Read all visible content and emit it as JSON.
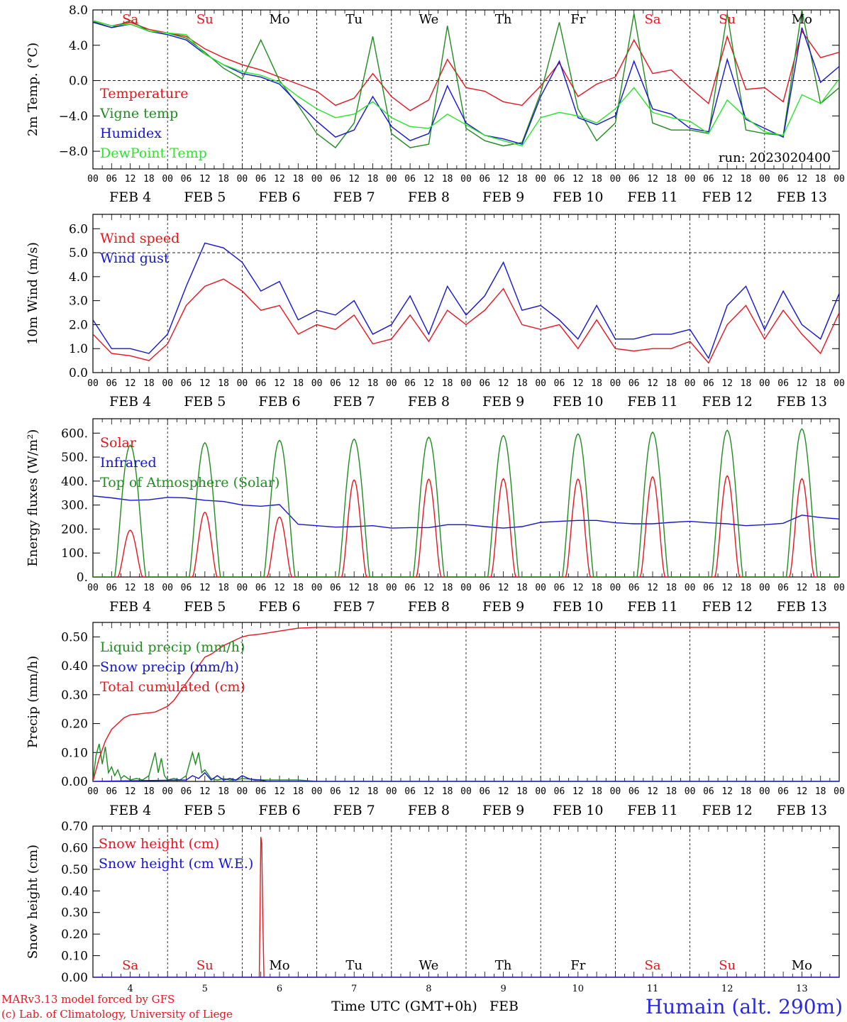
{
  "colors": {
    "red": "#e8141e",
    "green": "#1e8c1e",
    "blue": "#1414d2",
    "lightgreen": "#28e628",
    "black": "#000000"
  },
  "timeline": {
    "day_starts": [
      "FEB 4",
      "FEB 5",
      "FEB 6",
      "FEB 7",
      "FEB 8",
      "FEB 9",
      "FEB 10",
      "FEB 11",
      "FEB 12",
      "FEB 13"
    ],
    "hour_ticks": [
      "00",
      "06",
      "12",
      "18"
    ],
    "final_tick": "00",
    "weekdays": [
      {
        "label": "Sa",
        "weekend": true
      },
      {
        "label": "Su",
        "weekend": true
      },
      {
        "label": "Mo",
        "weekend": false
      },
      {
        "label": "Tu",
        "weekend": false
      },
      {
        "label": "We",
        "weekend": false
      },
      {
        "label": "Th",
        "weekend": false
      },
      {
        "label": "Fr",
        "weekend": false
      },
      {
        "label": "Sa",
        "weekend": true
      },
      {
        "label": "Su",
        "weekend": true
      },
      {
        "label": "Mo",
        "weekend": false
      }
    ],
    "bottom_day_numbers": [
      "4",
      "5",
      "6",
      "7",
      "8",
      "9",
      "10",
      "11",
      "12",
      "13"
    ]
  },
  "footer": {
    "credit1": "MARv3.13 model forced by GFS",
    "credit2": "(c) Lab. of Climatology, University of Liege",
    "xlabel": "Time UTC (GMT+0h)",
    "month": "FEB",
    "station": "Humain (alt. 290m)"
  },
  "chart_data": [
    {
      "type": "line",
      "ylabel": "2m Temp. (°C)",
      "ylim": [
        -10,
        8
      ],
      "yticks": [
        8,
        4,
        0,
        -4,
        -8
      ],
      "ytick_labels": [
        "8.0",
        "4.0",
        "0.0",
        "−4.0",
        "−8.0"
      ],
      "annotation": "run: 2023020400",
      "x_unit": "hours since FEB 4 00 UTC",
      "series": [
        {
          "name": "Temperature",
          "color": "red",
          "x": [
            0,
            6,
            12,
            18,
            24,
            30,
            36,
            42,
            48,
            54,
            60,
            66,
            72,
            78,
            84,
            90,
            96,
            102,
            108,
            114,
            120,
            126,
            132,
            138,
            144,
            150,
            156,
            162,
            168,
            174,
            180,
            186,
            192,
            198,
            204,
            210,
            216,
            222,
            228,
            234,
            240
          ],
          "values": [
            6.8,
            6.2,
            6.6,
            5.8,
            5.4,
            5.0,
            3.6,
            2.6,
            1.8,
            1.2,
            0.4,
            -0.4,
            -1.2,
            -2.8,
            -2.0,
            0.8,
            -1.8,
            -3.4,
            -2.2,
            2.4,
            -0.8,
            -1.2,
            -2.4,
            -2.8,
            -0.6,
            2.0,
            -1.8,
            -0.4,
            0.4,
            4.6,
            0.8,
            1.2,
            -0.8,
            -2.6,
            5.0,
            -1.0,
            -0.8,
            -2.4,
            5.6,
            2.6,
            3.2
          ]
        },
        {
          "name": "Vigne temp",
          "color": "green",
          "x": [
            0,
            6,
            12,
            18,
            24,
            30,
            36,
            42,
            48,
            54,
            60,
            66,
            72,
            78,
            84,
            90,
            96,
            102,
            108,
            114,
            120,
            126,
            132,
            138,
            144,
            150,
            156,
            162,
            168,
            174,
            180,
            186,
            192,
            198,
            204,
            210,
            216,
            222,
            228,
            234,
            240
          ],
          "values": [
            6.7,
            6.0,
            6.8,
            5.6,
            5.4,
            4.8,
            3.2,
            1.4,
            0.2,
            4.6,
            0.0,
            -2.8,
            -6.0,
            -7.6,
            -4.8,
            5.0,
            -6.0,
            -7.6,
            -7.2,
            6.2,
            -5.4,
            -6.8,
            -7.4,
            -7.0,
            -1.4,
            6.6,
            -3.2,
            -6.8,
            -4.8,
            7.6,
            -4.8,
            -5.6,
            -5.6,
            -6.0,
            7.6,
            -5.6,
            -6.0,
            -6.2,
            8.0,
            -2.6,
            -0.8
          ]
        },
        {
          "name": "Humidex",
          "color": "blue",
          "x": [
            0,
            6,
            12,
            18,
            24,
            30,
            36,
            42,
            48,
            54,
            60,
            66,
            72,
            78,
            84,
            90,
            96,
            102,
            108,
            114,
            120,
            126,
            132,
            138,
            144,
            150,
            156,
            162,
            168,
            174,
            180,
            186,
            192,
            198,
            204,
            210,
            216,
            222,
            228,
            234,
            240
          ],
          "values": [
            6.6,
            6.0,
            6.4,
            5.6,
            5.2,
            4.6,
            3.0,
            1.8,
            0.8,
            0.4,
            -0.4,
            -2.6,
            -4.6,
            -6.4,
            -5.6,
            -1.8,
            -5.2,
            -6.8,
            -6.0,
            -0.6,
            -4.8,
            -6.2,
            -6.6,
            -7.2,
            -1.8,
            2.2,
            -4.2,
            -5.0,
            -4.0,
            2.2,
            -3.2,
            -3.8,
            -5.4,
            -5.8,
            2.4,
            -4.4,
            -5.4,
            -6.4,
            6.0,
            -0.2,
            1.6
          ]
        },
        {
          "name": "DewPoint Temp",
          "color": "lightgreen",
          "x": [
            0,
            6,
            12,
            18,
            24,
            30,
            36,
            42,
            48,
            54,
            60,
            66,
            72,
            78,
            84,
            90,
            96,
            102,
            108,
            114,
            120,
            126,
            132,
            138,
            144,
            150,
            156,
            162,
            168,
            174,
            180,
            186,
            192,
            198,
            204,
            210,
            216,
            222,
            228,
            234,
            240
          ],
          "values": [
            6.8,
            6.2,
            6.4,
            5.6,
            5.4,
            5.2,
            3.0,
            1.8,
            1.0,
            0.6,
            -0.2,
            -1.8,
            -3.2,
            -4.2,
            -3.8,
            -2.4,
            -4.2,
            -5.2,
            -5.4,
            -3.8,
            -5.0,
            -6.2,
            -6.8,
            -7.4,
            -4.2,
            -3.6,
            -4.0,
            -4.8,
            -3.2,
            -0.8,
            -3.6,
            -4.2,
            -4.6,
            -6.0,
            -2.2,
            -4.2,
            -5.8,
            -6.2,
            -1.6,
            -2.6,
            0.2
          ]
        }
      ]
    },
    {
      "type": "line",
      "ylabel": "10m Wind (m/s)",
      "ylim": [
        0,
        6.6
      ],
      "yticks": [
        0,
        1,
        2,
        3,
        4,
        5,
        6
      ],
      "ytick_labels": [
        "0.0",
        "1.0",
        "2.0",
        "3.0",
        "4.0",
        "5.0",
        "6.0"
      ],
      "x_unit": "hours since FEB 4 00 UTC",
      "series": [
        {
          "name": "Wind speed",
          "color": "red",
          "x": [
            0,
            6,
            12,
            18,
            24,
            30,
            36,
            42,
            48,
            54,
            60,
            66,
            72,
            78,
            84,
            90,
            96,
            102,
            108,
            114,
            120,
            126,
            132,
            138,
            144,
            150,
            156,
            162,
            168,
            174,
            180,
            186,
            192,
            198,
            204,
            210,
            216,
            222,
            228,
            234,
            240
          ],
          "values": [
            1.6,
            0.8,
            0.7,
            0.5,
            1.2,
            2.8,
            3.6,
            3.9,
            3.4,
            2.6,
            2.8,
            1.6,
            2.0,
            1.8,
            2.4,
            1.2,
            1.4,
            2.4,
            1.3,
            2.6,
            2.0,
            2.6,
            3.5,
            2.0,
            1.8,
            2.0,
            1.0,
            2.2,
            1.0,
            0.9,
            1.0,
            1.0,
            1.3,
            0.4,
            2.0,
            2.8,
            1.4,
            2.6,
            1.6,
            0.8,
            2.5
          ]
        },
        {
          "name": "Wind gust",
          "color": "blue",
          "x": [
            0,
            6,
            12,
            18,
            24,
            30,
            36,
            42,
            48,
            54,
            60,
            66,
            72,
            78,
            84,
            90,
            96,
            102,
            108,
            114,
            120,
            126,
            132,
            138,
            144,
            150,
            156,
            162,
            168,
            174,
            180,
            186,
            192,
            198,
            204,
            210,
            216,
            222,
            228,
            234,
            240
          ],
          "values": [
            2.2,
            1.0,
            1.0,
            0.8,
            1.6,
            3.6,
            5.4,
            5.2,
            4.6,
            3.4,
            3.8,
            2.2,
            2.6,
            2.4,
            3.0,
            1.6,
            2.0,
            3.2,
            1.6,
            3.6,
            2.4,
            3.2,
            4.6,
            2.6,
            2.8,
            2.2,
            1.4,
            2.8,
            1.4,
            1.4,
            1.6,
            1.6,
            1.8,
            0.6,
            2.8,
            3.6,
            1.8,
            3.4,
            2.0,
            1.4,
            3.3
          ]
        }
      ]
    },
    {
      "type": "line",
      "ylabel": "Energy fluxes (W/m²)",
      "ylim": [
        0,
        660
      ],
      "yticks": [
        0,
        100,
        200,
        300,
        400,
        500,
        600
      ],
      "ytick_labels": [
        "0.",
        "100.",
        "200.",
        "300.",
        "400.",
        "500.",
        "600."
      ],
      "x_unit": "hours since FEB 4 00 UTC",
      "series": [
        {
          "name": "Solar",
          "color": "red",
          "diurnal_peaks": [
            195,
            270,
            250,
            405,
            408,
            410,
            408,
            418,
            422,
            410
          ]
        },
        {
          "name": "Infrared",
          "color": "blue",
          "x": [
            0,
            6,
            12,
            18,
            24,
            30,
            36,
            42,
            48,
            54,
            60,
            66,
            72,
            78,
            84,
            90,
            96,
            102,
            108,
            114,
            120,
            126,
            132,
            138,
            144,
            150,
            156,
            162,
            168,
            174,
            180,
            186,
            192,
            198,
            204,
            210,
            216,
            222,
            228,
            234,
            240
          ],
          "values": [
            338,
            330,
            320,
            322,
            332,
            330,
            320,
            315,
            300,
            295,
            302,
            220,
            214,
            208,
            210,
            214,
            204,
            206,
            206,
            218,
            218,
            210,
            204,
            210,
            228,
            232,
            236,
            236,
            226,
            222,
            222,
            228,
            232,
            226,
            222,
            214,
            218,
            224,
            258,
            248,
            242
          ]
        },
        {
          "name": "Top of Atmosphere (Solar)",
          "color": "green",
          "diurnal_peaks": [
            550,
            560,
            570,
            575,
            583,
            590,
            597,
            604,
            612,
            618
          ]
        }
      ]
    },
    {
      "type": "line",
      "ylabel": "Precip (mm/h)",
      "ylim": [
        0,
        0.55
      ],
      "yticks": [
        0,
        0.1,
        0.2,
        0.3,
        0.4,
        0.5
      ],
      "ytick_labels": [
        "0.00",
        "0.10",
        "0.20",
        "0.30",
        "0.40",
        "0.50"
      ],
      "x_unit": "hours since FEB 4 00 UTC",
      "series": [
        {
          "name": "Liquid precip (mm/h)",
          "color": "green",
          "x": [
            0,
            1,
            2,
            3,
            4,
            5,
            6,
            7,
            8,
            9,
            10,
            12,
            14,
            16,
            18,
            20,
            21,
            22,
            23,
            24,
            26,
            28,
            30,
            32,
            33,
            34,
            35,
            36,
            38,
            40,
            42,
            44,
            46,
            48,
            54,
            60,
            66,
            72,
            240
          ],
          "values": [
            0,
            0.09,
            0.13,
            0.06,
            0.12,
            0.03,
            0.05,
            0.02,
            0.04,
            0.01,
            0.02,
            0.005,
            0.01,
            0.005,
            0.02,
            0.1,
            0.03,
            0.08,
            0.02,
            0.005,
            0.01,
            0.005,
            0.02,
            0.1,
            0.06,
            0.1,
            0.03,
            0.04,
            0.01,
            0.005,
            0.01,
            0.005,
            0.005,
            0.01,
            0.005,
            0.005,
            0.005,
            0,
            0
          ]
        },
        {
          "name": "Snow precip (mm/h)",
          "color": "blue",
          "x": [
            0,
            30,
            32,
            34,
            36,
            38,
            40,
            42,
            44,
            46,
            48,
            50,
            52,
            54,
            56,
            60,
            72,
            240
          ],
          "values": [
            0,
            0.005,
            0.02,
            0.01,
            0.03,
            0.005,
            0.02,
            0.005,
            0.01,
            0.005,
            0.02,
            0.01,
            0.005,
            0.005,
            0,
            0,
            0,
            0
          ]
        },
        {
          "name": "Total cumulated (cm)",
          "color": "red",
          "x": [
            0,
            2,
            4,
            6,
            8,
            10,
            12,
            16,
            20,
            22,
            24,
            26,
            28,
            30,
            32,
            34,
            36,
            38,
            40,
            42,
            44,
            46,
            48,
            50,
            54,
            60,
            66,
            72,
            240
          ],
          "values": [
            0,
            0.08,
            0.14,
            0.18,
            0.2,
            0.22,
            0.23,
            0.235,
            0.24,
            0.25,
            0.26,
            0.28,
            0.31,
            0.34,
            0.37,
            0.4,
            0.43,
            0.44,
            0.455,
            0.47,
            0.48,
            0.49,
            0.5,
            0.505,
            0.51,
            0.52,
            0.53,
            0.533,
            0.533
          ]
        }
      ]
    },
    {
      "type": "line",
      "ylabel": "Snow height (cm)",
      "ylim": [
        0,
        0.7
      ],
      "yticks": [
        0,
        0.1,
        0.2,
        0.3,
        0.4,
        0.5,
        0.6,
        0.7
      ],
      "ytick_labels": [
        "0.00",
        "0.10",
        "0.20",
        "0.30",
        "0.40",
        "0.50",
        "0.60",
        "0.70"
      ],
      "x_unit": "hours since FEB 4 00 UTC",
      "series": [
        {
          "name": "Snow height (cm)",
          "color": "red",
          "x": [
            0,
            53.5,
            54,
            54.3,
            54.6,
            55,
            240
          ],
          "values": [
            0,
            0,
            0.65,
            0.62,
            0.3,
            0,
            0
          ]
        },
        {
          "name": "Snow height (cm W.E.)",
          "color": "blue",
          "x": [
            0,
            240
          ],
          "values": [
            0,
            0
          ]
        }
      ]
    }
  ]
}
